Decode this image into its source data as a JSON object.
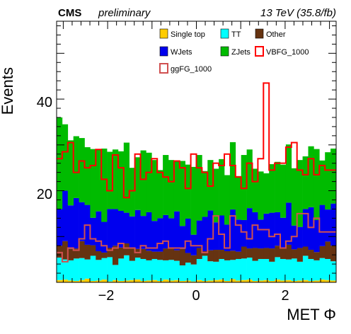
{
  "header": {
    "experiment": "CMS",
    "status": "preliminary",
    "luminosity": "13 TeV (35.8/fb)"
  },
  "chart_data": {
    "type": "area",
    "xlabel": "MET Φ",
    "ylabel": "Events",
    "xlim": [
      -3.15,
      3.15
    ],
    "ylim": [
      0,
      57
    ],
    "x_ticks": [
      -2,
      0,
      2
    ],
    "x_tick_labels": [
      "−2",
      "0",
      "2"
    ],
    "y_ticks": [
      20,
      40
    ],
    "y_tick_labels": [
      "20",
      "40"
    ],
    "legend_position": "top-right",
    "n_bins": 50,
    "bin_edges": [
      -3.15,
      3.15
    ],
    "stack_order": [
      "Single top",
      "TT",
      "Other",
      "WJets",
      "ZJets"
    ],
    "series": [
      {
        "name": "Single top",
        "kind": "stacked",
        "color": "#ffcc00",
        "values": [
          0.5,
          0.6,
          0.4,
          0.3,
          0.5,
          0.8,
          0.3,
          0.4,
          0.6,
          0.2,
          0.5,
          0.3,
          0.4,
          0.5,
          0.6,
          0.3,
          0.4,
          0.5,
          0.3,
          0.6,
          0.4,
          0.5,
          0.3,
          0.4,
          0.2,
          0.5,
          0.3,
          0.4,
          0.5,
          0.6,
          0.3,
          0.7,
          0.4,
          0.5,
          0.6,
          0.3,
          0.4,
          0.5,
          0.3,
          0.6,
          0.4,
          0.5,
          0.3,
          0.4,
          0.5,
          0.3,
          0.4,
          0.6,
          0.5,
          0.4
        ]
      },
      {
        "name": "TT",
        "kind": "stacked",
        "color": "#00ffff",
        "values": [
          4.9,
          4.4,
          4.4,
          4.9,
          4.8,
          4.2,
          5.5,
          4.5,
          4.7,
          5.3,
          3.3,
          4.9,
          5.5,
          4.2,
          4.8,
          4.8,
          4.4,
          4.6,
          4.6,
          4.2,
          4.5,
          4.2,
          3.4,
          3.9,
          3.7,
          4.6,
          5.5,
          4.2,
          4.0,
          4.5,
          4.5,
          4.2,
          4.7,
          4.7,
          4.8,
          4.4,
          4.7,
          4.6,
          4.2,
          4.9,
          4.7,
          4.5,
          4.9,
          4.1,
          5.3,
          4.8,
          4.4,
          4.7,
          4.6,
          4.2
        ]
      },
      {
        "name": "Other",
        "kind": "stacked",
        "color": "#663311",
        "values": [
          2.6,
          4.0,
          2.5,
          2.2,
          3.7,
          3.2,
          2.3,
          1.9,
          1.2,
          2.0,
          4.2,
          2.4,
          2.6,
          2.9,
          1.9,
          2.2,
          2.1,
          1.6,
          1.8,
          2.6,
          2.7,
          2.3,
          3.6,
          2.1,
          2.0,
          2.4,
          1.0,
          2.4,
          2.6,
          2.0,
          2.0,
          2.0,
          1.6,
          2.6,
          2.0,
          2.8,
          2.3,
          2.4,
          2.9,
          2.5,
          2.4,
          3.2,
          2.0,
          3.0,
          2.0,
          2.0,
          1.8,
          2.6,
          3.8,
          3.4
        ]
      },
      {
        "name": "WJets",
        "kind": "stacked",
        "color": "#0000ee",
        "values": [
          8.0,
          11.0,
          9.5,
          11.0,
          8.5,
          8.7,
          6.0,
          8.7,
          6.7,
          8.5,
          8.0,
          8.0,
          6.7,
          6.8,
          8.5,
          7.2,
          8.4,
          6.7,
          7.3,
          7.3,
          6.4,
          8.5,
          5.0,
          7.5,
          4.5,
          6.0,
          7.5,
          8.7,
          6.0,
          7.5,
          5.8,
          9.0,
          7.0,
          5.8,
          8.8,
          7.8,
          6.3,
          7.5,
          7.8,
          7.3,
          6.6,
          9.2,
          5.2,
          4.6,
          8.2,
          9.3,
          7.0,
          9.0,
          7.0,
          9.2
        ]
      },
      {
        "name": "ZJets",
        "kind": "stacked",
        "color": "#00bb00",
        "values": [
          20.0,
          14.5,
          14.2,
          13.5,
          14.0,
          12.6,
          15.0,
          13.5,
          16.0,
          12.5,
          13.0,
          13.0,
          15.3,
          10.6,
          11.5,
          14.3,
          13.0,
          13.3,
          10.5,
          13.1,
          12.7,
          11.1,
          14.2,
          11.8,
          14.8,
          14.3,
          10.0,
          11.0,
          11.7,
          12.3,
          10.8,
          14.7,
          9.5,
          14.2,
          12.8,
          9.5,
          10.5,
          8.8,
          10.6,
          11.0,
          11.6,
          12.7,
          12.5,
          14.6,
          11.5,
          13.3,
          15.5,
          9.7,
          12.5,
          12.0
        ]
      },
      {
        "name": "VBFG_1000",
        "kind": "line",
        "color": "#ff0000",
        "values": [
          27.0,
          28.5,
          30.5,
          24.0,
          26.5,
          25.0,
          25.5,
          29.0,
          22.5,
          20.0,
          27.8,
          25.0,
          18.5,
          20.0,
          28.0,
          22.5,
          24.0,
          27.0,
          24.0,
          23.0,
          22.0,
          26.5,
          25.0,
          20.5,
          28.0,
          25.0,
          24.0,
          21.0,
          26.0,
          25.5,
          28.0,
          25.5,
          23.0,
          20.5,
          26.0,
          22.0,
          27.0,
          43.5,
          24.5,
          26.0,
          26.0,
          29.5,
          30.5,
          24.5,
          23.5,
          27.0,
          23.5,
          25.5,
          24.5,
          24.5
        ]
      },
      {
        "name": "ggFG_1000",
        "kind": "line",
        "color": "#d05050",
        "values": [
          6.5,
          4.5,
          7.5,
          7.0,
          9.5,
          12.5,
          9.5,
          9.0,
          8.0,
          7.0,
          7.5,
          8.5,
          7.5,
          7.5,
          6.5,
          8.0,
          7.5,
          7.5,
          8.5,
          9.0,
          7.5,
          7.5,
          7.5,
          9.0,
          8.0,
          8.0,
          6.5,
          9.5,
          14.5,
          10.5,
          7.5,
          14.5,
          12.5,
          11.0,
          9.5,
          12.5,
          11.5,
          11.5,
          10.0,
          10.5,
          7.5,
          9.0,
          10.0,
          15.0,
          15.0,
          12.0,
          14.0,
          11.0,
          11.0,
          11.0
        ]
      }
    ]
  }
}
